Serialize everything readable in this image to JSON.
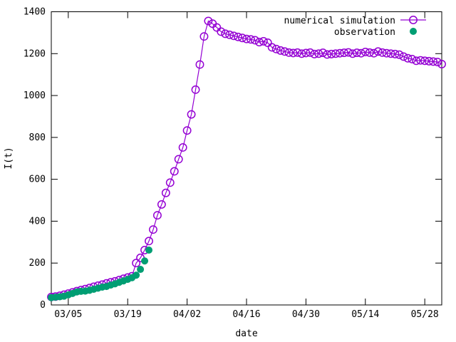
{
  "chart_data": {
    "type": "line",
    "title": "",
    "xlabel": "date",
    "ylabel": "I(t)",
    "x_tick_labels": [
      "03/05",
      "03/19",
      "04/02",
      "04/16",
      "04/30",
      "05/14",
      "05/28"
    ],
    "x_tick_days": [
      5,
      19,
      33,
      47,
      61,
      75,
      89
    ],
    "x_date_origin": "2020-02-29",
    "xlim": [
      "2020-03-01",
      "2020-06-01"
    ],
    "ylim": [
      0,
      1400
    ],
    "y_ticks": [
      0,
      200,
      400,
      600,
      800,
      1000,
      1200,
      1400
    ],
    "legend_position": "top-right",
    "grid": false,
    "series": [
      {
        "name": "numerical simulation",
        "color": "#9400d3",
        "marker": "open-circle",
        "line": true,
        "x": [
          "2020-03-01",
          "2020-03-02",
          "2020-03-03",
          "2020-03-04",
          "2020-03-05",
          "2020-03-06",
          "2020-03-07",
          "2020-03-08",
          "2020-03-09",
          "2020-03-10",
          "2020-03-11",
          "2020-03-12",
          "2020-03-13",
          "2020-03-14",
          "2020-03-15",
          "2020-03-16",
          "2020-03-17",
          "2020-03-18",
          "2020-03-19",
          "2020-03-20",
          "2020-03-21",
          "2020-03-22",
          "2020-03-23",
          "2020-03-24",
          "2020-03-25",
          "2020-03-26",
          "2020-03-27",
          "2020-03-28",
          "2020-03-29",
          "2020-03-30",
          "2020-03-31",
          "2020-04-01",
          "2020-04-02",
          "2020-04-03",
          "2020-04-04",
          "2020-04-05",
          "2020-04-06",
          "2020-04-07",
          "2020-04-08",
          "2020-04-09",
          "2020-04-10",
          "2020-04-11",
          "2020-04-12",
          "2020-04-13",
          "2020-04-14",
          "2020-04-15",
          "2020-04-16",
          "2020-04-17",
          "2020-04-18",
          "2020-04-19",
          "2020-04-20",
          "2020-04-21",
          "2020-04-22",
          "2020-04-23",
          "2020-04-24",
          "2020-04-25",
          "2020-04-26",
          "2020-04-27",
          "2020-04-28",
          "2020-04-29",
          "2020-04-30",
          "2020-05-01",
          "2020-05-02",
          "2020-05-03",
          "2020-05-04",
          "2020-05-05",
          "2020-05-06",
          "2020-05-07",
          "2020-05-08",
          "2020-05-09",
          "2020-05-10",
          "2020-05-11",
          "2020-05-12",
          "2020-05-13",
          "2020-05-14",
          "2020-05-15",
          "2020-05-16",
          "2020-05-17",
          "2020-05-18",
          "2020-05-19",
          "2020-05-20",
          "2020-05-21",
          "2020-05-22",
          "2020-05-23",
          "2020-05-24",
          "2020-05-25",
          "2020-05-26",
          "2020-05-27",
          "2020-05-28",
          "2020-05-29",
          "2020-05-30",
          "2020-05-31",
          "2020-06-01"
        ],
        "y": [
          38,
          40,
          44,
          49,
          54,
          60,
          66,
          71,
          76,
          81,
          87,
          92,
          97,
          103,
          108,
          113,
          119,
          125,
          131,
          137,
          200,
          225,
          262,
          305,
          360,
          428,
          480,
          535,
          584,
          638,
          696,
          752,
          833,
          910,
          1028,
          1148,
          1282,
          1356,
          1343,
          1325,
          1305,
          1295,
          1290,
          1285,
          1280,
          1275,
          1270,
          1268,
          1264,
          1255,
          1259,
          1252,
          1230,
          1222,
          1215,
          1210,
          1205,
          1203,
          1205,
          1200,
          1203,
          1205,
          1198,
          1200,
          1204,
          1196,
          1198,
          1200,
          1202,
          1204,
          1206,
          1200,
          1204,
          1202,
          1208,
          1205,
          1202,
          1210,
          1205,
          1202,
          1200,
          1198,
          1195,
          1186,
          1178,
          1174,
          1166,
          1168,
          1166,
          1164,
          1162,
          1160,
          1150
        ]
      },
      {
        "name": "observation",
        "color": "#009e73",
        "marker": "filled-circle",
        "line": false,
        "x": [
          "2020-03-01",
          "2020-03-02",
          "2020-03-03",
          "2020-03-04",
          "2020-03-05",
          "2020-03-06",
          "2020-03-07",
          "2020-03-08",
          "2020-03-09",
          "2020-03-10",
          "2020-03-11",
          "2020-03-12",
          "2020-03-13",
          "2020-03-14",
          "2020-03-15",
          "2020-03-16",
          "2020-03-17",
          "2020-03-18",
          "2020-03-19",
          "2020-03-20",
          "2020-03-21",
          "2020-03-22",
          "2020-03-23",
          "2020-03-24"
        ],
        "y": [
          35,
          37,
          39,
          42,
          48,
          55,
          62,
          65,
          66,
          70,
          75,
          80,
          85,
          88,
          95,
          101,
          108,
          115,
          122,
          130,
          142,
          170,
          210,
          262
        ]
      }
    ]
  }
}
